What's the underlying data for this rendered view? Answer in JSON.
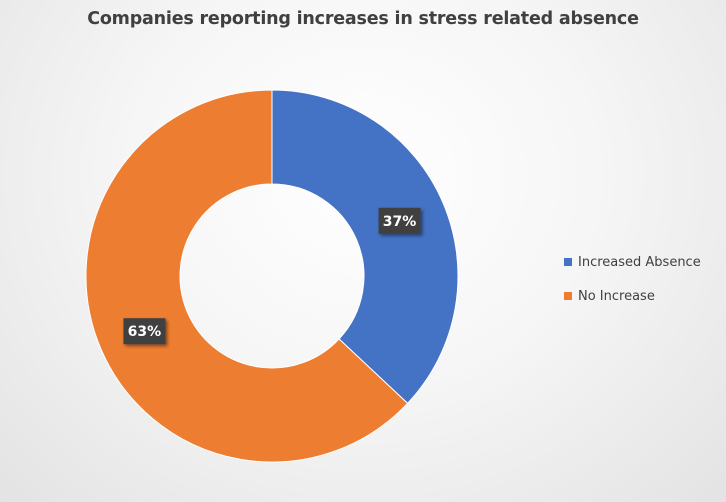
{
  "chart_data": {
    "type": "pie",
    "variant": "donut",
    "title": "Companies reporting increases in stress related absence",
    "categories": [
      "Increased Absence",
      "No Increase"
    ],
    "values": [
      37,
      63
    ],
    "data_labels": [
      "37%",
      "63%"
    ],
    "colors": [
      "#4472c4",
      "#ed7d31"
    ],
    "legend_position": "right"
  }
}
